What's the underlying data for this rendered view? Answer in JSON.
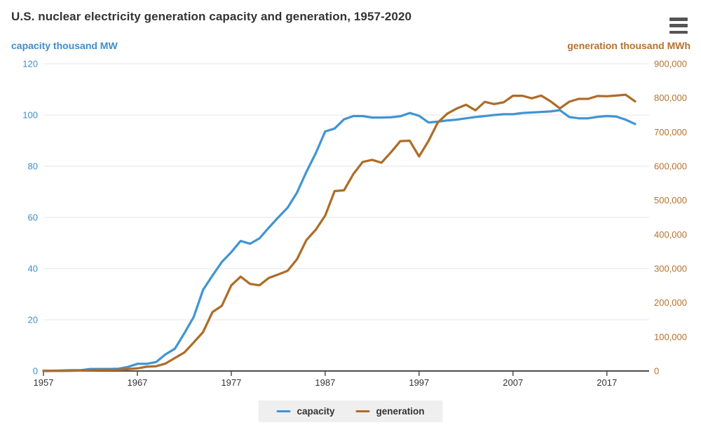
{
  "header": {
    "title": "U.S. nuclear electricity generation capacity and generation, 1957-2020"
  },
  "menu": {
    "icon": "hamburger-icon",
    "tooltip": "Chart context menu"
  },
  "colors": {
    "capacity": "#4195d3",
    "generation": "#ad6d28",
    "grid": "#e6e6e6",
    "axis_line": "#4d4d4d",
    "left_tick_text": "#3d8ec9",
    "right_tick_text": "#b5722e",
    "x_tick_text": "#333333",
    "legend_bg": "#efefef",
    "title_text": "#333333"
  },
  "legend": {
    "items": [
      {
        "label": "capacity",
        "series": "capacity"
      },
      {
        "label": "generation",
        "series": "generation"
      }
    ]
  },
  "chart_data": {
    "type": "line",
    "title": "U.S. nuclear electricity generation capacity and generation, 1957-2020",
    "ylabel_left": "capacity thousand MW",
    "ylabel_right": "generation thousand MWh",
    "xlim": [
      1957,
      2021.5
    ],
    "ylim_left": [
      0,
      120
    ],
    "ylim_right": [
      0,
      900000
    ],
    "grid": true,
    "legend_position": "bottom-center",
    "x_ticks": [
      1957,
      1967,
      1977,
      1987,
      1997,
      2007,
      2017
    ],
    "y_ticks_left": [
      0,
      20,
      40,
      60,
      80,
      100,
      120
    ],
    "y_ticks_right": [
      0,
      100000,
      200000,
      300000,
      400000,
      500000,
      600000,
      700000,
      800000,
      900000
    ],
    "years": [
      1957,
      1958,
      1959,
      1960,
      1961,
      1962,
      1963,
      1964,
      1965,
      1966,
      1967,
      1968,
      1969,
      1970,
      1971,
      1972,
      1973,
      1974,
      1975,
      1976,
      1977,
      1978,
      1979,
      1980,
      1981,
      1982,
      1983,
      1984,
      1985,
      1986,
      1987,
      1988,
      1989,
      1990,
      1991,
      1992,
      1993,
      1994,
      1995,
      1996,
      1997,
      1998,
      1999,
      2000,
      2001,
      2002,
      2003,
      2004,
      2005,
      2006,
      2007,
      2008,
      2009,
      2010,
      2011,
      2012,
      2013,
      2014,
      2015,
      2016,
      2017,
      2018,
      2019,
      2020
    ],
    "series": [
      {
        "name": "capacity",
        "axis": "left",
        "units": "thousand MW",
        "values": [
          0.1,
          0.1,
          0.2,
          0.3,
          0.3,
          0.8,
          0.8,
          0.8,
          0.9,
          1.6,
          2.8,
          2.8,
          3.5,
          6.5,
          8.7,
          14.7,
          21.1,
          31.7,
          37.3,
          42.6,
          46.4,
          50.8,
          49.7,
          51.8,
          56.0,
          60.0,
          63.8,
          69.7,
          77.8,
          85.1,
          93.6,
          94.7,
          98.3,
          99.6,
          99.6,
          99.0,
          99.0,
          99.1,
          99.5,
          100.8,
          99.7,
          97.1,
          97.4,
          97.9,
          98.2,
          98.7,
          99.2,
          99.6,
          100.0,
          100.3,
          100.3,
          100.8,
          101.0,
          101.2,
          101.4,
          101.9,
          99.2,
          98.7,
          98.7,
          99.3,
          99.6,
          99.4,
          98.2,
          96.5
        ]
      },
      {
        "name": "generation",
        "axis": "right",
        "units": "thousand MWh",
        "values": [
          10,
          165,
          188,
          518,
          1692,
          2270,
          3212,
          3343,
          3657,
          5520,
          7655,
          12528,
          13928,
          21804,
          38105,
          54091,
          83479,
          113976,
          172505,
          191104,
          250883,
          276403,
          255155,
          251116,
          272674,
          282773,
          293677,
          327634,
          383691,
          414038,
          455270,
          526973,
          529355,
          576862,
          612565,
          618776,
          610291,
          640440,
          673402,
          674729,
          628644,
          673702,
          728254,
          753893,
          768826,
          780064,
          763733,
          788528,
          781986,
          787219,
          806425,
          806208,
          798855,
          806968,
          790204,
          769331,
          789016,
          797166,
          797178,
          805694,
          804950,
          807084,
          809409,
          789879
        ]
      }
    ]
  }
}
